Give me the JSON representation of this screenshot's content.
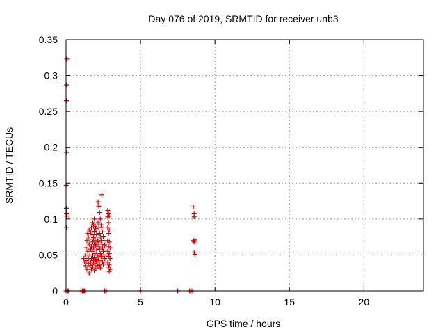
{
  "chart_data": {
    "type": "scatter",
    "title": "Day 076 of 2019, SRMTID for receiver unb3",
    "xlabel": "GPS time / hours",
    "ylabel": "SRMTID / TECUs",
    "xlim": [
      0,
      24
    ],
    "ylim": [
      0,
      0.35
    ],
    "x_ticks": [
      0,
      5,
      10,
      15,
      20
    ],
    "y_ticks": [
      0,
      0.05,
      0.1,
      0.15,
      0.2,
      0.25,
      0.3,
      0.35
    ],
    "x_tick_labels": [
      "0",
      "5",
      "10",
      "15",
      "20"
    ],
    "y_tick_labels": [
      "0",
      "0.05",
      "0.1",
      "0.15",
      "0.2",
      "0.25",
      "0.3",
      "0.35"
    ],
    "grid": true,
    "marker": "plus",
    "color": "#d00000",
    "series": [
      {
        "points": [
          [
            0.05,
            0.323
          ],
          [
            0.03,
            0.287
          ],
          [
            0.02,
            0.265
          ],
          [
            0.02,
            0.193
          ],
          [
            0.01,
            0.147
          ],
          [
            0.02,
            0.115
          ],
          [
            0.03,
            0.108
          ],
          [
            0.05,
            0.104
          ],
          [
            0.02,
            0.088
          ],
          [
            0.0,
            0.0
          ],
          [
            0.1,
            0.0
          ],
          [
            0.15,
            0.0
          ],
          [
            1.0,
            0.0
          ],
          [
            1.1,
            0.0
          ],
          [
            1.2,
            0.0
          ],
          [
            1.25,
            0.0
          ],
          [
            2.6,
            0.0
          ],
          [
            2.7,
            0.0
          ],
          [
            5.0,
            0.0
          ],
          [
            7.5,
            0.0
          ],
          [
            8.3,
            0.0
          ],
          [
            8.4,
            0.0
          ],
          [
            8.5,
            0.0
          ],
          [
            1.2,
            0.045
          ],
          [
            1.25,
            0.04
          ],
          [
            1.3,
            0.05
          ],
          [
            1.3,
            0.035
          ],
          [
            1.35,
            0.06
          ],
          [
            1.35,
            0.042
          ],
          [
            1.4,
            0.07
          ],
          [
            1.4,
            0.03
          ],
          [
            1.45,
            0.08
          ],
          [
            1.45,
            0.055
          ],
          [
            1.5,
            0.075
          ],
          [
            1.5,
            0.045
          ],
          [
            1.5,
            0.038
          ],
          [
            1.55,
            0.085
          ],
          [
            1.55,
            0.065
          ],
          [
            1.55,
            0.025
          ],
          [
            1.6,
            0.072
          ],
          [
            1.6,
            0.05
          ],
          [
            1.6,
            0.035
          ],
          [
            1.65,
            0.082
          ],
          [
            1.65,
            0.058
          ],
          [
            1.65,
            0.04
          ],
          [
            1.7,
            0.088
          ],
          [
            1.7,
            0.062
          ],
          [
            1.7,
            0.045
          ],
          [
            1.7,
            0.03
          ],
          [
            1.75,
            0.078
          ],
          [
            1.75,
            0.055
          ],
          [
            1.75,
            0.036
          ],
          [
            1.8,
            0.095
          ],
          [
            1.8,
            0.068
          ],
          [
            1.8,
            0.05
          ],
          [
            1.8,
            0.033
          ],
          [
            1.85,
            0.092
          ],
          [
            1.85,
            0.074
          ],
          [
            1.85,
            0.06
          ],
          [
            1.85,
            0.042
          ],
          [
            1.9,
            0.1
          ],
          [
            1.9,
            0.083
          ],
          [
            1.9,
            0.065
          ],
          [
            1.9,
            0.046
          ],
          [
            1.9,
            0.028
          ],
          [
            1.95,
            0.09
          ],
          [
            1.95,
            0.07
          ],
          [
            1.95,
            0.052
          ],
          [
            1.95,
            0.038
          ],
          [
            2.0,
            0.087
          ],
          [
            2.0,
            0.064
          ],
          [
            2.0,
            0.044
          ],
          [
            2.0,
            0.031
          ],
          [
            2.05,
            0.078
          ],
          [
            2.05,
            0.057
          ],
          [
            2.05,
            0.04
          ],
          [
            2.1,
            0.072
          ],
          [
            2.1,
            0.05
          ],
          [
            2.1,
            0.035
          ],
          [
            2.15,
            0.124
          ],
          [
            2.15,
            0.095
          ],
          [
            2.15,
            0.068
          ],
          [
            2.15,
            0.047
          ],
          [
            2.2,
            0.118
          ],
          [
            2.2,
            0.088
          ],
          [
            2.2,
            0.062
          ],
          [
            2.2,
            0.042
          ],
          [
            2.25,
            0.109
          ],
          [
            2.25,
            0.08
          ],
          [
            2.25,
            0.058
          ],
          [
            2.25,
            0.036
          ],
          [
            2.3,
            0.1
          ],
          [
            2.3,
            0.075
          ],
          [
            2.3,
            0.052
          ],
          [
            2.3,
            0.032
          ],
          [
            2.35,
            0.092
          ],
          [
            2.35,
            0.07
          ],
          [
            2.35,
            0.048
          ],
          [
            2.4,
            0.134
          ],
          [
            2.4,
            0.088
          ],
          [
            2.4,
            0.065
          ],
          [
            2.4,
            0.043
          ],
          [
            2.45,
            0.082
          ],
          [
            2.45,
            0.06
          ],
          [
            2.45,
            0.04
          ],
          [
            2.5,
            0.076
          ],
          [
            2.5,
            0.055
          ],
          [
            2.5,
            0.037
          ],
          [
            2.55,
            0.07
          ],
          [
            2.55,
            0.05
          ],
          [
            2.6,
            0.064
          ],
          [
            2.6,
            0.045
          ],
          [
            2.8,
            0.112
          ],
          [
            2.8,
            0.103
          ],
          [
            2.8,
            0.088
          ],
          [
            2.8,
            0.07
          ],
          [
            2.8,
            0.055
          ],
          [
            2.8,
            0.04
          ],
          [
            2.85,
            0.108
          ],
          [
            2.85,
            0.095
          ],
          [
            2.85,
            0.08
          ],
          [
            2.85,
            0.062
          ],
          [
            2.85,
            0.048
          ],
          [
            2.85,
            0.033
          ],
          [
            2.9,
            0.104
          ],
          [
            2.9,
            0.085
          ],
          [
            2.9,
            0.068
          ],
          [
            2.9,
            0.052
          ],
          [
            2.9,
            0.036
          ],
          [
            2.9,
            0.027
          ],
          [
            2.95,
            0.06
          ],
          [
            2.95,
            0.045
          ],
          [
            2.95,
            0.03
          ],
          [
            8.55,
            0.117
          ],
          [
            8.6,
            0.108
          ],
          [
            8.6,
            0.103
          ],
          [
            8.55,
            0.07
          ],
          [
            8.6,
            0.068
          ],
          [
            8.65,
            0.071
          ],
          [
            8.6,
            0.053
          ],
          [
            8.65,
            0.051
          ]
        ]
      }
    ]
  }
}
